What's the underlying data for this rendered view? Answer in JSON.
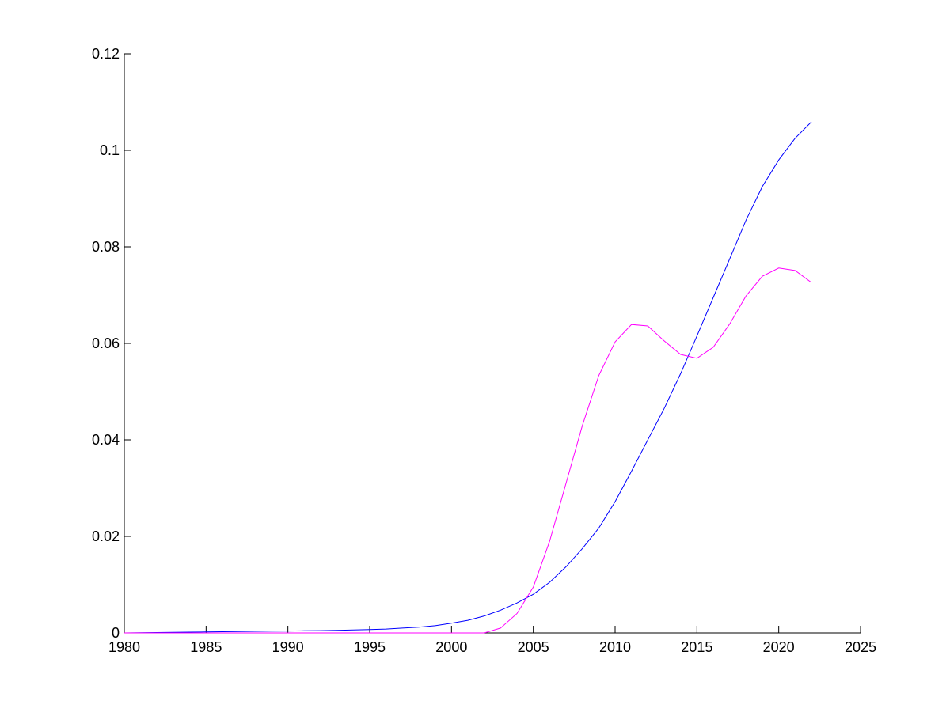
{
  "chart_data": {
    "type": "line",
    "title": "",
    "xlabel": "",
    "ylabel": "",
    "xlim": [
      1980,
      2025
    ],
    "ylim": [
      0,
      0.12
    ],
    "grid": false,
    "xticks": [
      "1980",
      "1985",
      "1990",
      "1995",
      "2000",
      "2005",
      "2010",
      "2015",
      "2020",
      "2025"
    ],
    "yticks": [
      "0",
      "0.02",
      "0.04",
      "0.06",
      "0.08",
      "0.1",
      "0.12"
    ],
    "x": [
      1980,
      1981,
      1982,
      1983,
      1984,
      1985,
      1986,
      1987,
      1988,
      1989,
      1990,
      1991,
      1992,
      1993,
      1994,
      1995,
      1996,
      1997,
      1998,
      1999,
      2000,
      2001,
      2002,
      2003,
      2004,
      2005,
      2006,
      2007,
      2008,
      2009,
      2010,
      2011,
      2012,
      2013,
      2014,
      2015,
      2016,
      2017,
      2018,
      2019,
      2020,
      2021,
      2022
    ],
    "series": [
      {
        "color": "#0000ff",
        "values": [
          0,
          4e-05,
          8e-05,
          0.00012,
          0.00016,
          0.0002,
          0.00024,
          0.00028,
          0.00032,
          0.00036,
          0.0004,
          0.00044,
          0.00048,
          0.00054,
          0.0006,
          0.0007,
          0.0008,
          0.001,
          0.0012,
          0.0015,
          0.002,
          0.0026,
          0.0035,
          0.0047,
          0.0062,
          0.008,
          0.0105,
          0.0137,
          0.0175,
          0.0217,
          0.0272,
          0.0335,
          0.04,
          0.0465,
          0.0537,
          0.0615,
          0.0695,
          0.0775,
          0.0855,
          0.0925,
          0.098,
          0.1025,
          0.1059
        ]
      },
      {
        "color": "#ff00ff",
        "values": [
          0,
          0,
          0,
          0,
          0,
          0,
          0,
          0,
          0,
          0,
          0,
          0,
          0,
          0,
          0,
          0,
          0,
          0,
          0,
          0,
          0,
          0,
          0,
          0.001,
          0.004,
          0.0095,
          0.019,
          0.031,
          0.043,
          0.0533,
          0.0603,
          0.0639,
          0.0636,
          0.0605,
          0.0577,
          0.0569,
          0.0592,
          0.064,
          0.0698,
          0.0739,
          0.0756,
          0.0751,
          0.0726
        ]
      }
    ]
  }
}
